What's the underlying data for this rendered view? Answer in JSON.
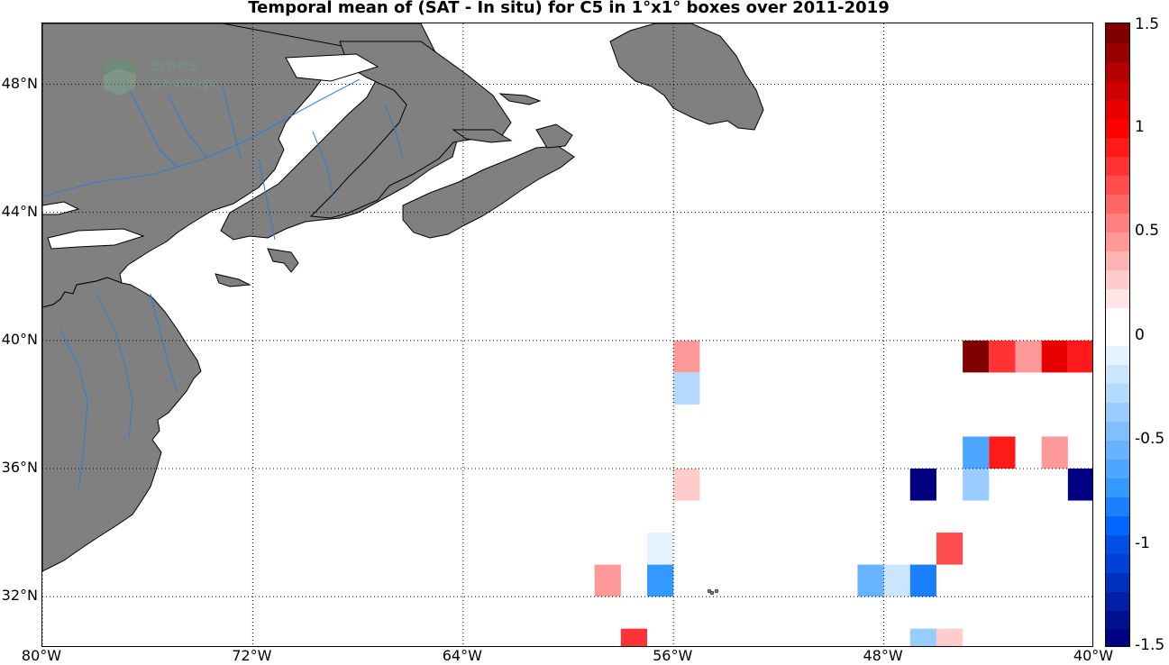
{
  "map": {
    "title": "Temporal mean of (SAT - In situ) for C5 in 1°x1° boxes over 2011-2019",
    "lon_range": [
      -80,
      -40
    ],
    "lat_range": [
      30.4,
      49.9
    ],
    "lat_ticks": [
      {
        "value": 48,
        "label": "48°N"
      },
      {
        "value": 44,
        "label": "44°N"
      },
      {
        "value": 40,
        "label": "40°N"
      },
      {
        "value": 36,
        "label": "36°N"
      },
      {
        "value": 32,
        "label": "32°N"
      }
    ],
    "lon_ticks": [
      {
        "value": -80,
        "label": "80°W"
      },
      {
        "value": -72,
        "label": "72°W"
      },
      {
        "value": -64,
        "label": "64°W"
      },
      {
        "value": -56,
        "label": "56°W"
      },
      {
        "value": -48,
        "label": "48°W"
      },
      {
        "value": -40,
        "label": "40°W"
      }
    ],
    "land_color": "#808080",
    "river_color": "#2a7fd4",
    "grid": true
  },
  "logo": {
    "line1": "smos",
    "line2": "pi-mep"
  },
  "colorbar": {
    "range": [
      -1.5,
      1.5
    ],
    "ticks": [
      {
        "value": 1.5,
        "label": "1.5"
      },
      {
        "value": 1,
        "label": "1"
      },
      {
        "value": 0.5,
        "label": "0.5"
      },
      {
        "value": 0,
        "label": "0"
      },
      {
        "value": -0.5,
        "label": "-0.5"
      },
      {
        "value": -1,
        "label": "-1"
      },
      {
        "value": -1.5,
        "label": "-1.5"
      }
    ],
    "colors": [
      "#000080",
      "#001090",
      "#0020a8",
      "#0030c0",
      "#0040d8",
      "#0050e8",
      "#0066ff",
      "#1a80ff",
      "#3399ff",
      "#4da6ff",
      "#66b3ff",
      "#80bfff",
      "#99ccff",
      "#b3d9ff",
      "#cce5ff",
      "#e6f2ff",
      "#ffffff",
      "#ffffff",
      "#ffe6e6",
      "#ffcccc",
      "#ffb3b3",
      "#ff9999",
      "#ff8080",
      "#ff6666",
      "#ff4d4d",
      "#ff3333",
      "#ff1a1a",
      "#ff0000",
      "#e60000",
      "#cc0000",
      "#b30000",
      "#990000",
      "#800000"
    ]
  },
  "cells": [
    {
      "lon": -55.5,
      "lat": 39.5,
      "value": 0.45
    },
    {
      "lon": -55.5,
      "lat": 38.5,
      "value": -0.3
    },
    {
      "lon": -55.5,
      "lat": 35.5,
      "value": 0.25
    },
    {
      "lon": -56.5,
      "lat": 33.5,
      "value": -0.1
    },
    {
      "lon": -56.5,
      "lat": 32.5,
      "value": -0.75
    },
    {
      "lon": -58.5,
      "lat": 32.5,
      "value": 0.45
    },
    {
      "lon": -57.5,
      "lat": 30.5,
      "value": 0.8
    },
    {
      "lon": -48.5,
      "lat": 32.5,
      "value": -0.55
    },
    {
      "lon": -47.5,
      "lat": 32.5,
      "value": -0.2
    },
    {
      "lon": -46.5,
      "lat": 32.5,
      "value": -0.85
    },
    {
      "lon": -45.5,
      "lat": 33.5,
      "value": 0.75
    },
    {
      "lon": -46.5,
      "lat": 35.5,
      "value": -1.45
    },
    {
      "lon": -44.5,
      "lat": 35.5,
      "value": -0.4
    },
    {
      "lon": -44.5,
      "lat": 36.5,
      "value": -0.65
    },
    {
      "lon": -43.5,
      "lat": 36.5,
      "value": 0.95
    },
    {
      "lon": -41.5,
      "lat": 36.5,
      "value": 0.45
    },
    {
      "lon": -40.5,
      "lat": 35.5,
      "value": -1.45
    },
    {
      "lon": -44.5,
      "lat": 39.5,
      "value": 1.45
    },
    {
      "lon": -43.5,
      "lat": 39.5,
      "value": 0.85
    },
    {
      "lon": -42.5,
      "lat": 39.5,
      "value": 0.45
    },
    {
      "lon": -41.5,
      "lat": 39.5,
      "value": 1.1
    },
    {
      "lon": -40.5,
      "lat": 39.5,
      "value": 0.9
    },
    {
      "lon": -46.5,
      "lat": 30.5,
      "value": -0.4
    },
    {
      "lon": -45.5,
      "lat": 30.5,
      "value": 0.3
    }
  ]
}
